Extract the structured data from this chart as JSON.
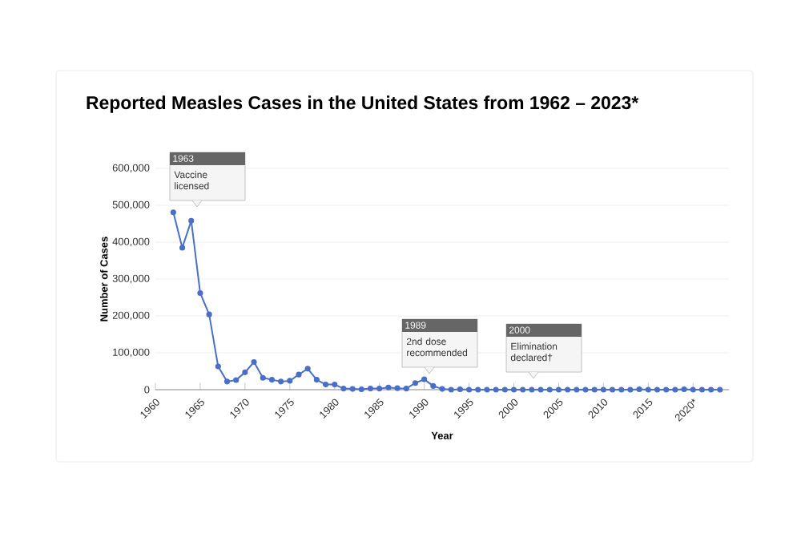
{
  "chart_data": {
    "type": "line",
    "title": "Reported Measles Cases in the United States from 1962 – 2023*",
    "xlabel": "Year",
    "ylabel": "Number of Cases",
    "x": [
      1962,
      1963,
      1964,
      1965,
      1966,
      1967,
      1968,
      1969,
      1970,
      1971,
      1972,
      1973,
      1974,
      1975,
      1976,
      1977,
      1978,
      1979,
      1980,
      1981,
      1982,
      1983,
      1984,
      1985,
      1986,
      1987,
      1988,
      1989,
      1990,
      1991,
      1992,
      1993,
      1994,
      1995,
      1996,
      1997,
      1998,
      1999,
      2000,
      2001,
      2002,
      2003,
      2004,
      2005,
      2006,
      2007,
      2008,
      2009,
      2010,
      2011,
      2012,
      2013,
      2014,
      2015,
      2016,
      2017,
      2018,
      2019,
      2020,
      2021,
      2022,
      2023
    ],
    "series": [
      {
        "color": "#4a6fc8",
        "values": [
          481000,
          385000,
          458000,
          262000,
          204000,
          63000,
          22000,
          26000,
          47000,
          75000,
          32000,
          27000,
          22000,
          24000,
          41000,
          57000,
          27000,
          14000,
          14000,
          3000,
          2000,
          1000,
          3000,
          3000,
          6000,
          4000,
          3000,
          18000,
          28000,
          10000,
          2000,
          0,
          1000,
          0,
          0,
          0,
          0,
          0,
          0,
          0,
          0,
          0,
          0,
          0,
          0,
          0,
          0,
          0,
          0,
          0,
          0,
          0,
          1000,
          0,
          0,
          0,
          0,
          1000,
          0,
          0,
          0,
          0
        ]
      }
    ],
    "xlim": [
      1960,
      2024
    ],
    "ylim": [
      0,
      600000
    ],
    "xticks": [
      1960,
      1965,
      1970,
      1975,
      1980,
      1985,
      1990,
      1995,
      2000,
      2005,
      2010,
      2015,
      {
        "value": 2020,
        "label": "2020*"
      }
    ],
    "yticks": [
      {
        "value": 0,
        "label": "0"
      },
      {
        "value": 100000,
        "label": "100,000"
      },
      {
        "value": 200000,
        "label": "200,000"
      },
      {
        "value": 300000,
        "label": "300,000"
      },
      {
        "value": 400000,
        "label": "400,000"
      },
      {
        "value": 500000,
        "label": "500,000"
      },
      {
        "value": 600000,
        "label": "600,000"
      }
    ],
    "grid": "y",
    "marker": "circle",
    "line_style": "solid",
    "annotations": [
      "1963",
      "Vaccine licensed",
      "1989",
      "2nd dose recommended",
      "2000",
      "Elimination declared†"
    ]
  }
}
